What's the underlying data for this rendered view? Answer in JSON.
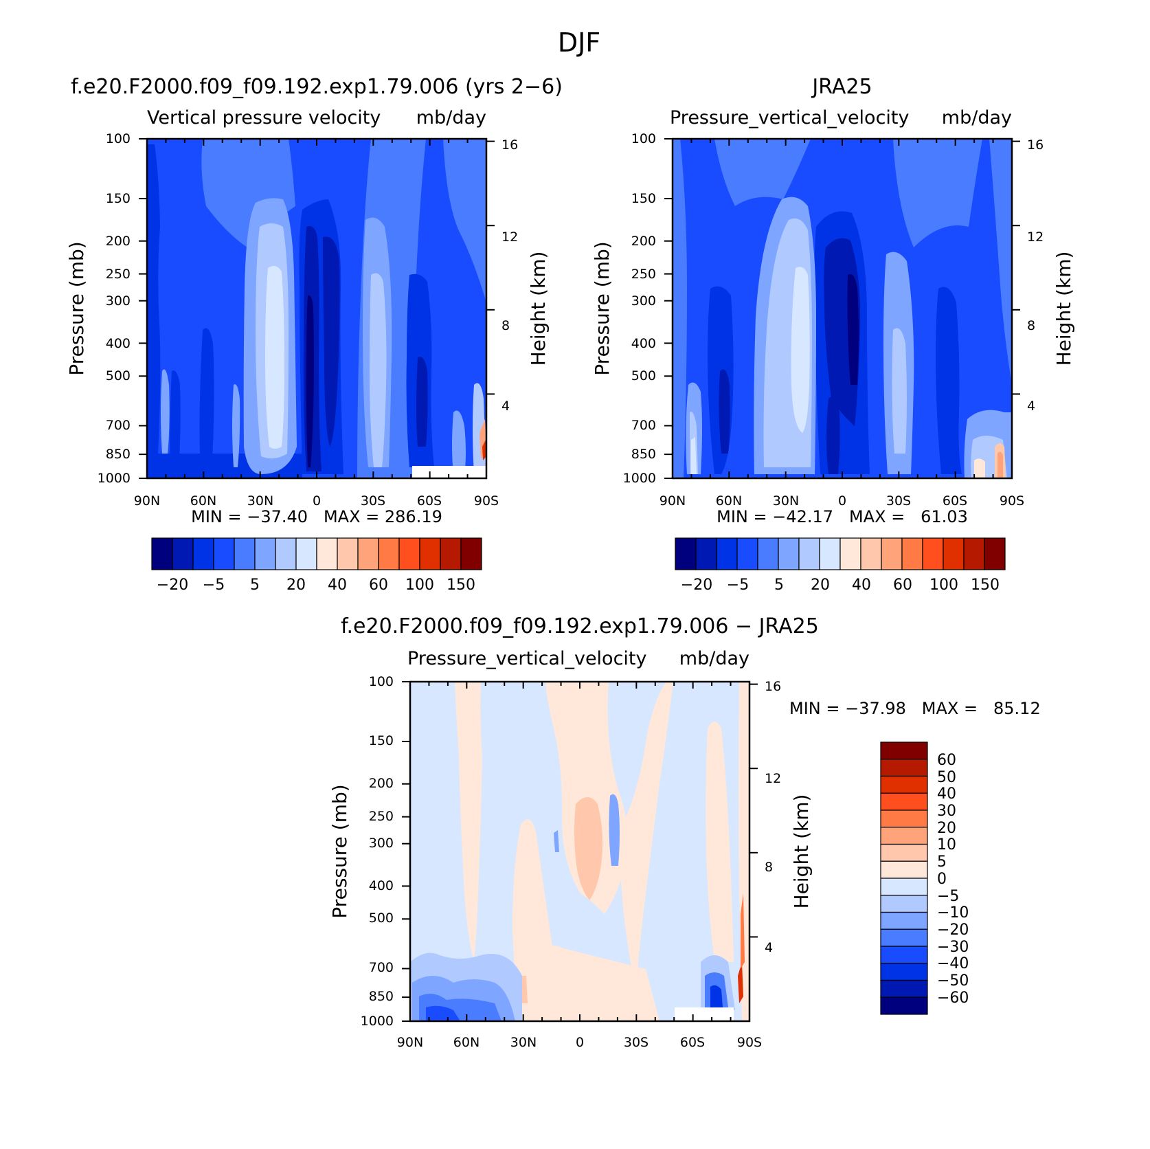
{
  "figure_title": "DJF",
  "chart_data": [
    {
      "id": "model",
      "type": "heatmap",
      "case_title": "f.e20.F2000.f09_f09.192.exp1.79.006 (yrs 2−6)",
      "subtitle_left": "Vertical pressure velocity",
      "subtitle_right": "mb/day",
      "ylabel": "Pressure (mb)",
      "ylabel_right": "Height (km)",
      "x_ticks": [
        "90N",
        "60N",
        "30N",
        "0",
        "30S",
        "60S",
        "90S"
      ],
      "x_range": [
        90,
        -90
      ],
      "y_ticks": [
        "100",
        "150",
        "200",
        "250",
        "300",
        "400",
        "500",
        "700",
        "850",
        "1000"
      ],
      "y_range": [
        100,
        1000
      ],
      "height_ticks": [
        "4",
        "8",
        "12",
        "16"
      ],
      "stats": "MIN = −37.40   MAX = 286.19",
      "colorbar": {
        "orientation": "horizontal",
        "labels": [
          "−20",
          "−5",
          "5",
          "20",
          "40",
          "60",
          "100",
          "150"
        ],
        "colors": [
          "#00007f",
          "#0019b2",
          "#0033e5",
          "#1a4cff",
          "#4a7cff",
          "#7ea5ff",
          "#b0c9ff",
          "#d7e7ff",
          "#ffe8d9",
          "#ffc8ac",
          "#ffa47a",
          "#ff7a45",
          "#ff4f1f",
          "#e03000",
          "#b51a00",
          "#800000"
        ]
      }
    },
    {
      "id": "obs",
      "type": "heatmap",
      "case_title": "JRA25",
      "subtitle_left": "Pressure_vertical_velocity",
      "subtitle_right": "mb/day",
      "ylabel": "Pressure (mb)",
      "ylabel_right": "Height (km)",
      "x_ticks": [
        "90N",
        "60N",
        "30N",
        "0",
        "30S",
        "60S",
        "90S"
      ],
      "x_range": [
        90,
        -90
      ],
      "y_ticks": [
        "100",
        "150",
        "200",
        "250",
        "300",
        "400",
        "500",
        "700",
        "850",
        "1000"
      ],
      "y_range": [
        100,
        1000
      ],
      "height_ticks": [
        "4",
        "8",
        "12",
        "16"
      ],
      "stats": "MIN = −42.17   MAX =   61.03",
      "colorbar": {
        "orientation": "horizontal",
        "labels": [
          "−20",
          "−5",
          "5",
          "20",
          "40",
          "60",
          "100",
          "150"
        ],
        "colors": [
          "#00007f",
          "#0019b2",
          "#0033e5",
          "#1a4cff",
          "#4a7cff",
          "#7ea5ff",
          "#b0c9ff",
          "#d7e7ff",
          "#ffe8d9",
          "#ffc8ac",
          "#ffa47a",
          "#ff7a45",
          "#ff4f1f",
          "#e03000",
          "#b51a00",
          "#800000"
        ]
      }
    },
    {
      "id": "diff",
      "type": "heatmap",
      "case_title": "f.e20.F2000.f09_f09.192.exp1.79.006 − JRA25",
      "subtitle_left": "Pressure_vertical_velocity",
      "subtitle_right": "mb/day",
      "ylabel": "Pressure (mb)",
      "ylabel_right": "Height (km)",
      "x_ticks": [
        "90N",
        "60N",
        "30N",
        "0",
        "30S",
        "60S",
        "90S"
      ],
      "x_range": [
        90,
        -90
      ],
      "y_ticks": [
        "100",
        "150",
        "200",
        "250",
        "300",
        "400",
        "500",
        "700",
        "850",
        "1000"
      ],
      "y_range": [
        100,
        1000
      ],
      "height_ticks": [
        "4",
        "8",
        "12",
        "16"
      ],
      "stats": "MIN = −37.98   MAX =   85.12",
      "colorbar": {
        "orientation": "vertical",
        "labels": [
          "60",
          "50",
          "40",
          "30",
          "20",
          "10",
          "5",
          "0",
          "−5",
          "−10",
          "−20",
          "−30",
          "−40",
          "−50",
          "−60"
        ],
        "colors": [
          "#800000",
          "#b51a00",
          "#e03000",
          "#ff4f1f",
          "#ff7a45",
          "#ffa47a",
          "#ffc8ac",
          "#ffe8d9",
          "#d7e7ff",
          "#b0c9ff",
          "#7ea5ff",
          "#4a7cff",
          "#1a4cff",
          "#0033e5",
          "#0019b2",
          "#00007f"
        ]
      }
    }
  ]
}
